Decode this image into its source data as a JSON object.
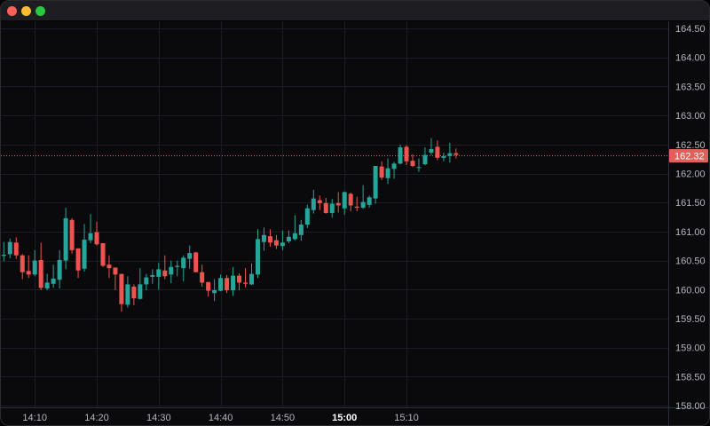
{
  "window": {
    "controls": [
      "close",
      "minimize",
      "maximize"
    ]
  },
  "chart_data": {
    "type": "candlestick",
    "interval": "1 minute",
    "fields": [
      "time",
      "open",
      "high",
      "low",
      "close"
    ],
    "candles": [
      [
        "14:05",
        160.58,
        160.82,
        160.49,
        160.6
      ],
      [
        "14:06",
        160.61,
        160.88,
        160.54,
        160.82
      ],
      [
        "14:07",
        160.81,
        160.9,
        160.53,
        160.59
      ],
      [
        "14:08",
        160.59,
        160.61,
        160.18,
        160.3
      ],
      [
        "14:09",
        160.32,
        160.59,
        160.2,
        160.26
      ],
      [
        "14:10",
        160.26,
        160.68,
        160.23,
        160.5
      ],
      [
        "14:11",
        160.51,
        160.81,
        159.99,
        160.03
      ],
      [
        "14:12",
        160.02,
        160.27,
        159.99,
        160.12
      ],
      [
        "14:13",
        160.1,
        160.43,
        160.03,
        160.19
      ],
      [
        "14:14",
        160.17,
        160.68,
        160.02,
        160.51
      ],
      [
        "14:15",
        160.5,
        161.41,
        160.35,
        161.23
      ],
      [
        "14:16",
        161.2,
        161.23,
        160.62,
        160.68
      ],
      [
        "14:17",
        160.71,
        160.71,
        160.2,
        160.33
      ],
      [
        "14:18",
        160.36,
        161.13,
        160.31,
        160.86
      ],
      [
        "14:19",
        160.85,
        161.3,
        160.8,
        160.97
      ],
      [
        "14:20",
        160.99,
        161.17,
        160.76,
        160.78
      ],
      [
        "14:21",
        160.8,
        160.8,
        160.39,
        160.41
      ],
      [
        "14:22",
        160.43,
        160.59,
        160.2,
        160.37
      ],
      [
        "14:23",
        160.38,
        160.38,
        159.99,
        160.26
      ],
      [
        "14:24",
        160.27,
        160.27,
        159.62,
        159.75
      ],
      [
        "14:25",
        159.74,
        160.23,
        159.69,
        160.09
      ],
      [
        "14:26",
        160.05,
        160.09,
        159.73,
        159.85
      ],
      [
        "14:27",
        159.84,
        160.37,
        159.83,
        160.09
      ],
      [
        "14:28",
        160.09,
        160.27,
        159.99,
        160.21
      ],
      [
        "14:29",
        160.22,
        160.35,
        160.1,
        160.25
      ],
      [
        "14:30",
        160.22,
        160.46,
        160.0,
        160.35
      ],
      [
        "14:31",
        160.33,
        160.59,
        160.18,
        160.23
      ],
      [
        "14:32",
        160.26,
        160.5,
        160.11,
        160.39
      ],
      [
        "14:33",
        160.39,
        160.5,
        160.23,
        160.41
      ],
      [
        "14:34",
        160.37,
        160.59,
        160.14,
        160.55
      ],
      [
        "14:35",
        160.53,
        160.76,
        160.36,
        160.63
      ],
      [
        "14:36",
        160.64,
        160.65,
        160.3,
        160.3
      ],
      [
        "14:37",
        160.3,
        160.43,
        160.05,
        160.12
      ],
      [
        "14:38",
        160.13,
        160.13,
        159.88,
        159.98
      ],
      [
        "14:39",
        159.94,
        160.18,
        159.8,
        159.99
      ],
      [
        "14:40",
        159.98,
        160.26,
        159.97,
        160.2
      ],
      [
        "14:41",
        160.2,
        160.25,
        159.94,
        159.99
      ],
      [
        "14:42",
        159.99,
        160.39,
        159.89,
        160.24
      ],
      [
        "14:43",
        160.24,
        160.28,
        159.99,
        160.12
      ],
      [
        "14:44",
        160.12,
        160.37,
        160.04,
        160.1
      ],
      [
        "14:45",
        160.09,
        160.45,
        160.08,
        160.27
      ],
      [
        "14:46",
        160.26,
        161.04,
        160.2,
        160.87
      ],
      [
        "14:47",
        160.82,
        161.07,
        160.67,
        160.94
      ],
      [
        "14:48",
        160.92,
        161.04,
        160.74,
        160.81
      ],
      [
        "14:49",
        160.85,
        160.94,
        160.7,
        160.76
      ],
      [
        "14:50",
        160.75,
        161.02,
        160.68,
        160.81
      ],
      [
        "14:51",
        160.83,
        161.02,
        160.8,
        160.91
      ],
      [
        "14:52",
        160.87,
        161.28,
        160.85,
        160.97
      ],
      [
        "14:53",
        160.94,
        161.2,
        160.84,
        161.12
      ],
      [
        "14:54",
        161.12,
        161.46,
        161.06,
        161.4
      ],
      [
        "14:55",
        161.37,
        161.72,
        161.31,
        161.57
      ],
      [
        "14:56",
        161.54,
        161.62,
        161.37,
        161.49
      ],
      [
        "14:57",
        161.49,
        161.58,
        161.31,
        161.32
      ],
      [
        "14:58",
        161.32,
        161.56,
        161.24,
        161.48
      ],
      [
        "14:59",
        161.49,
        161.68,
        161.33,
        161.45
      ],
      [
        "15:00",
        161.4,
        161.69,
        161.29,
        161.68
      ],
      [
        "15:01",
        161.65,
        161.67,
        161.35,
        161.45
      ],
      [
        "15:02",
        161.43,
        161.6,
        161.35,
        161.41
      ],
      [
        "15:03",
        161.41,
        161.8,
        161.39,
        161.51
      ],
      [
        "15:04",
        161.46,
        161.62,
        161.41,
        161.59
      ],
      [
        "15:05",
        161.57,
        162.13,
        161.48,
        162.13
      ],
      [
        "15:06",
        162.12,
        162.21,
        161.89,
        161.93
      ],
      [
        "15:07",
        161.92,
        162.26,
        161.82,
        162.09
      ],
      [
        "15:08",
        162.08,
        162.2,
        161.91,
        162.17
      ],
      [
        "15:09",
        162.17,
        162.5,
        162.16,
        162.45
      ],
      [
        "15:10",
        162.46,
        162.49,
        162.15,
        162.21
      ],
      [
        "15:11",
        162.22,
        162.33,
        162.11,
        162.13
      ],
      [
        "15:12",
        162.1,
        162.26,
        162.03,
        162.11
      ],
      [
        "15:13",
        162.16,
        162.45,
        162.14,
        162.32
      ],
      [
        "15:14",
        162.36,
        162.61,
        162.32,
        162.42
      ],
      [
        "15:15",
        162.46,
        162.57,
        162.23,
        162.27
      ],
      [
        "15:16",
        162.27,
        162.36,
        162.21,
        162.3
      ],
      [
        "15:17",
        162.3,
        162.53,
        162.19,
        162.35
      ],
      [
        "15:18",
        162.35,
        162.43,
        162.26,
        162.32
      ]
    ],
    "last_price": "162.32",
    "y_ticks": [
      "164.50",
      "164.00",
      "163.50",
      "163.00",
      "162.50",
      "162.00",
      "161.50",
      "161.00",
      "160.50",
      "160.00",
      "159.50",
      "159.00",
      "158.50",
      "158.00"
    ],
    "x_ticks": [
      "14:10",
      "14:20",
      "14:30",
      "14:40",
      "14:50",
      "15:00",
      "15:10"
    ],
    "x_tick_emphasized": "15:00",
    "ylim": [
      158.0,
      164.5
    ],
    "grid": true,
    "colors": {
      "up": "#26a69a",
      "down": "#ef5350",
      "last_price": "#e0605c",
      "background": "#0a0a0c",
      "grid": "#1c1c26"
    }
  }
}
